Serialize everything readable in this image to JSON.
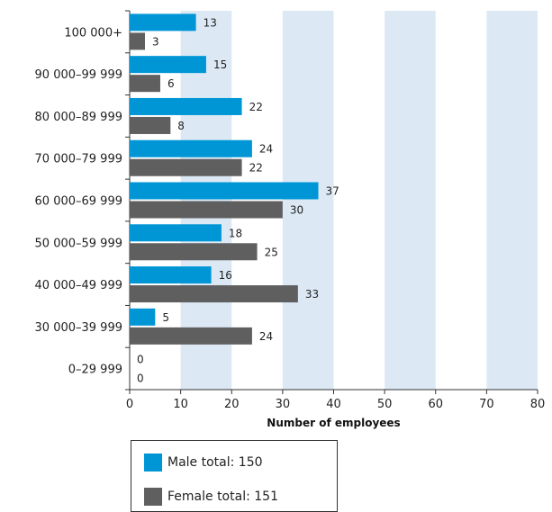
{
  "colors": {
    "male": "#0096d6",
    "female": "#5f5f5f",
    "band": "#dce9f5",
    "axis": "#333333"
  },
  "chart_data": {
    "type": "bar",
    "orientation": "horizontal",
    "categories": [
      "100 000+",
      "90 000–99 999",
      "80 000–89 999",
      "70 000–79 999",
      "60 000–69 999",
      "50 000–59 999",
      "40 000–49 999",
      "30 000–39 999",
      "0–29 999"
    ],
    "series": [
      {
        "name": "Male total: 150",
        "values": [
          13,
          15,
          22,
          24,
          37,
          18,
          16,
          5,
          0
        ]
      },
      {
        "name": "Female total: 151",
        "values": [
          3,
          6,
          8,
          22,
          30,
          25,
          33,
          24,
          0
        ]
      }
    ],
    "xlabel": "Number of employees",
    "ylabel": "",
    "xlim": [
      0,
      80
    ],
    "xticks": [
      "0",
      "10",
      "20",
      "30",
      "40",
      "50",
      "60",
      "70",
      "80"
    ],
    "alternating_bands": true,
    "legend_position": "bottom"
  },
  "legend": {
    "male_label": "Male total: 150",
    "female_label": "Female total: 151"
  }
}
